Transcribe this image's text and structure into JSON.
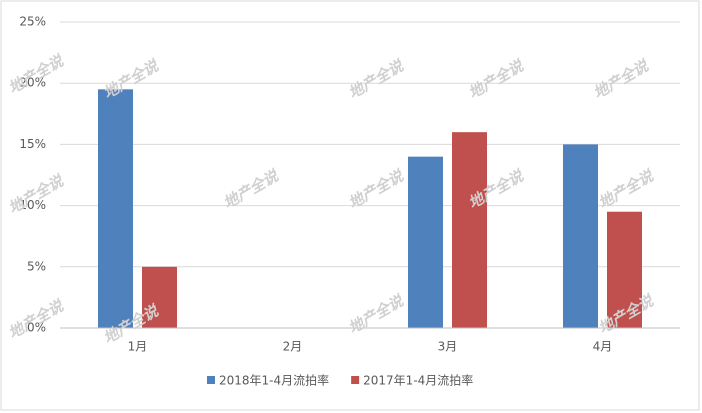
{
  "chart_data": {
    "type": "bar",
    "categories": [
      "1月",
      "2月",
      "3月",
      "4月"
    ],
    "series": [
      {
        "name": "2018年1-4月流拍率",
        "color": "#4f81bd",
        "values": [
          19.5,
          null,
          14,
          15
        ]
      },
      {
        "name": "2017年1-4月流拍率",
        "color": "#c0504d",
        "values": [
          5,
          null,
          16,
          9.5
        ]
      }
    ],
    "ylim": [
      0,
      25
    ],
    "yticks": [
      {
        "value": 0,
        "label": "0%"
      },
      {
        "value": 5,
        "label": "5%"
      },
      {
        "value": 10,
        "label": "10%"
      },
      {
        "value": 15,
        "label": "15%"
      },
      {
        "value": 20,
        "label": "20%"
      },
      {
        "value": 25,
        "label": "25%"
      }
    ],
    "grid": true,
    "legend": "bottom",
    "watermark": "地产全说"
  }
}
